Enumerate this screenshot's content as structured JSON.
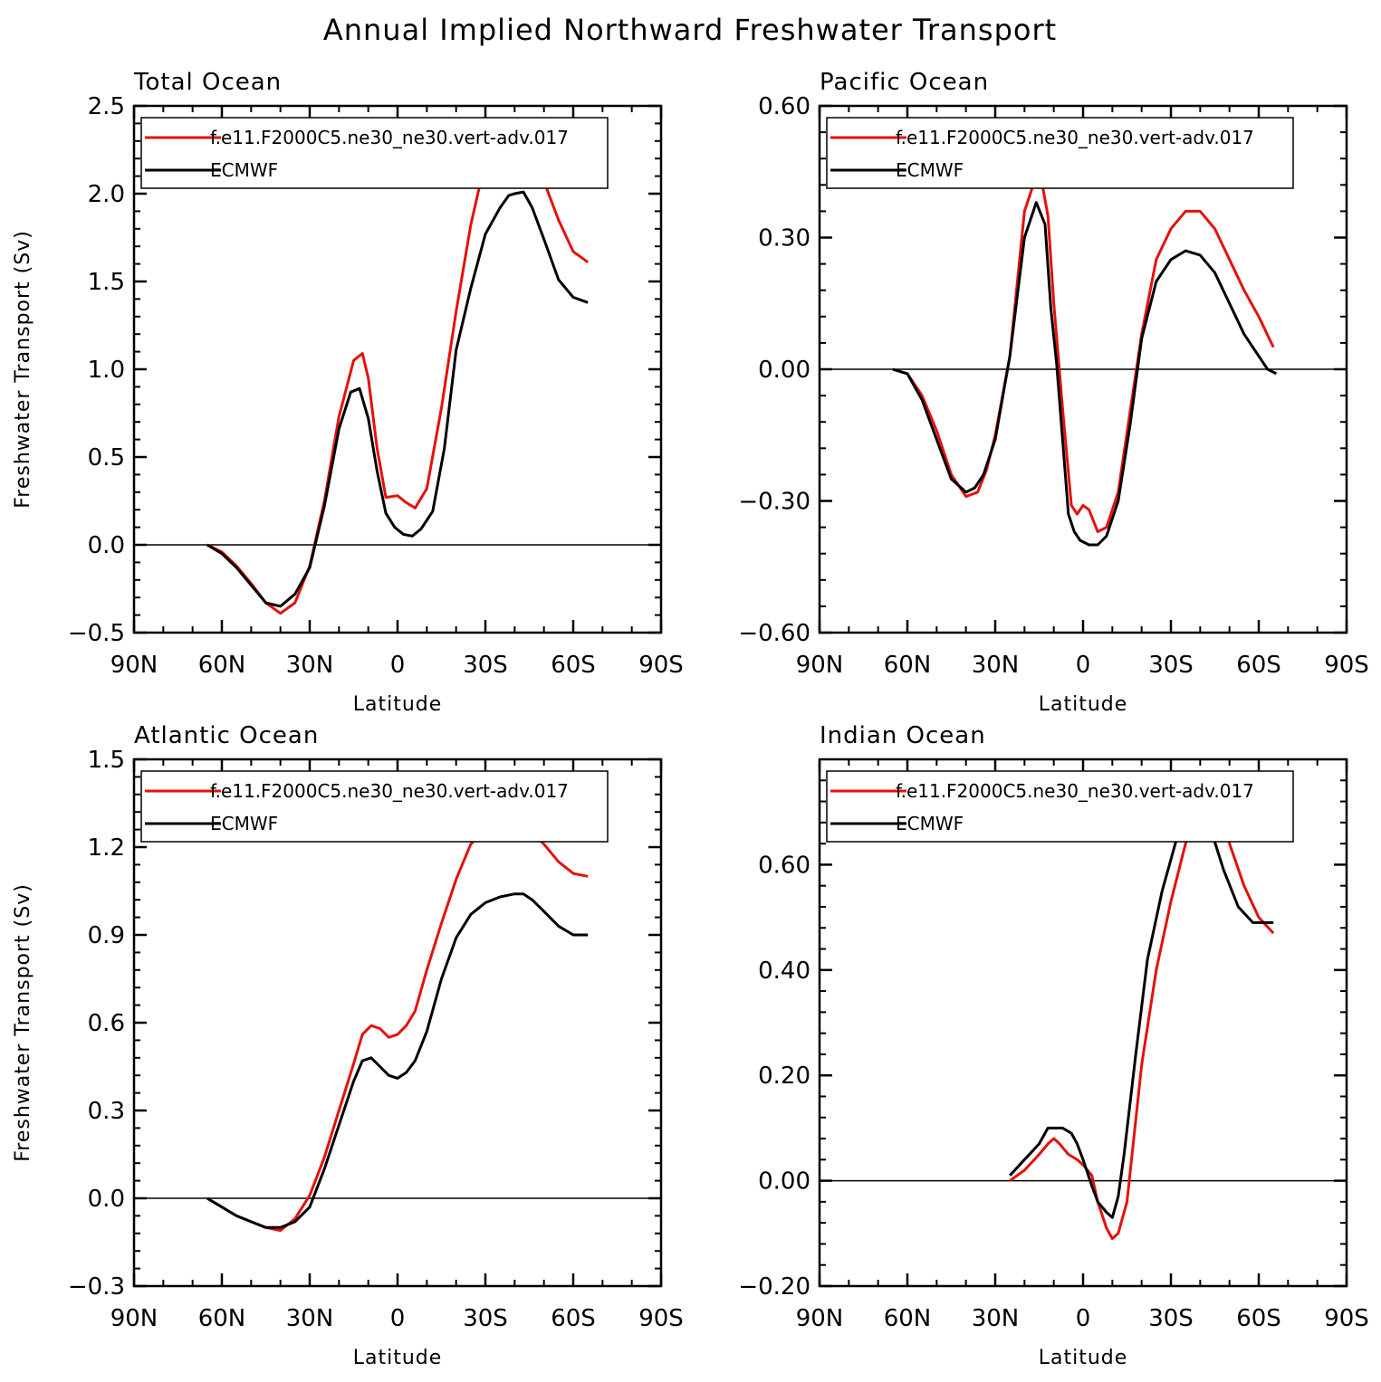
{
  "figure": {
    "title": "Annual Implied Northward Freshwater Transport"
  },
  "colors": {
    "model": "#e3120b",
    "obs": "#000000",
    "zero_line": "#000000"
  },
  "chart_data": [
    {
      "type": "line",
      "title": "Total Ocean",
      "xlabel": "Latitude",
      "ylabel": "Freshwater Transport (Sv)",
      "x_ticks": [
        -90,
        -60,
        -30,
        0,
        30,
        60,
        90
      ],
      "x_tick_labels": [
        "90N",
        "60N",
        "30N",
        "0",
        "30S",
        "60S",
        "90S"
      ],
      "xlim": [
        -90,
        90
      ],
      "ylim": [
        -0.5,
        2.5
      ],
      "y_ticks": [
        -0.5,
        0.0,
        0.5,
        1.0,
        1.5,
        2.0,
        2.5
      ],
      "y_tick_labels": [
        "-0.5",
        "0.0",
        "0.5",
        "1.0",
        "1.5",
        "2.0",
        "2.5"
      ],
      "legend": "top-left",
      "series": [
        {
          "name": "f.e11.F2000C5.ne30_ne30.vert-adv.017",
          "color": "#e3120b",
          "x": [
            -65,
            -60,
            -55,
            -50,
            -45,
            -40,
            -35,
            -30,
            -25,
            -20,
            -15,
            -12,
            -10,
            -7,
            -4,
            0,
            3,
            6,
            10,
            15,
            20,
            25,
            30,
            35,
            40,
            43,
            47,
            50,
            55,
            60,
            65
          ],
          "y": [
            0.0,
            -0.04,
            -0.12,
            -0.22,
            -0.33,
            -0.39,
            -0.33,
            -0.12,
            0.25,
            0.73,
            1.05,
            1.09,
            0.95,
            0.55,
            0.27,
            0.28,
            0.24,
            0.21,
            0.32,
            0.78,
            1.33,
            1.82,
            2.19,
            2.4,
            2.42,
            2.37,
            2.2,
            2.07,
            1.85,
            1.67,
            1.61
          ]
        },
        {
          "name": "ECMWF",
          "color": "#000000",
          "x": [
            -65,
            -60,
            -55,
            -50,
            -45,
            -40,
            -35,
            -30,
            -25,
            -20,
            -16,
            -13,
            -10,
            -7,
            -4,
            -1,
            2,
            5,
            8,
            12,
            16,
            20,
            25,
            30,
            35,
            38,
            40,
            43,
            46,
            50,
            55,
            60,
            65
          ],
          "y": [
            0.0,
            -0.05,
            -0.13,
            -0.23,
            -0.33,
            -0.35,
            -0.28,
            -0.13,
            0.22,
            0.66,
            0.87,
            0.89,
            0.72,
            0.42,
            0.18,
            0.1,
            0.06,
            0.05,
            0.09,
            0.19,
            0.55,
            1.11,
            1.46,
            1.77,
            1.92,
            1.99,
            2.0,
            2.01,
            1.92,
            1.74,
            1.51,
            1.41,
            1.38
          ]
        }
      ]
    },
    {
      "type": "line",
      "title": "Pacific Ocean",
      "xlabel": "Latitude",
      "ylabel": "",
      "x_ticks": [
        -90,
        -60,
        -30,
        0,
        30,
        60,
        90
      ],
      "x_tick_labels": [
        "90N",
        "60N",
        "30N",
        "0",
        "30S",
        "60S",
        "90S"
      ],
      "xlim": [
        -90,
        90
      ],
      "ylim": [
        -0.6,
        0.6
      ],
      "y_ticks": [
        -0.6,
        -0.3,
        0.0,
        0.3,
        0.6
      ],
      "y_tick_labels": [
        "-0.60",
        "-0.30",
        "0.00",
        "0.30",
        "0.60"
      ],
      "legend": "top-left",
      "series": [
        {
          "name": "f.e11.F2000C5.ne30_ne30.vert-adv.017",
          "color": "#e3120b",
          "x": [
            -65,
            -60,
            -55,
            -50,
            -45,
            -40,
            -36,
            -33,
            -30,
            -25,
            -20,
            -15,
            -12,
            -10,
            -7,
            -4,
            -2,
            0,
            2,
            5,
            8,
            12,
            16,
            20,
            25,
            30,
            35,
            40,
            45,
            50,
            55,
            60,
            65
          ],
          "y": [
            0.0,
            -0.01,
            -0.06,
            -0.14,
            -0.24,
            -0.29,
            -0.28,
            -0.23,
            -0.15,
            0.03,
            0.36,
            0.46,
            0.35,
            0.15,
            -0.09,
            -0.31,
            -0.33,
            -0.31,
            -0.32,
            -0.37,
            -0.36,
            -0.28,
            -0.1,
            0.08,
            0.25,
            0.32,
            0.36,
            0.36,
            0.32,
            0.25,
            0.18,
            0.12,
            0.05
          ]
        },
        {
          "name": "ECMWF",
          "color": "#000000",
          "x": [
            -65,
            -60,
            -55,
            -50,
            -45,
            -40,
            -37,
            -34,
            -30,
            -25,
            -20,
            -16,
            -13,
            -11,
            -9,
            -7,
            -5,
            -3,
            -1,
            2,
            5,
            8,
            12,
            16,
            20,
            25,
            30,
            35,
            40,
            45,
            50,
            55,
            60,
            63,
            66
          ],
          "y": [
            0.0,
            -0.01,
            -0.07,
            -0.16,
            -0.25,
            -0.28,
            -0.27,
            -0.24,
            -0.16,
            0.03,
            0.3,
            0.38,
            0.33,
            0.14,
            0.01,
            -0.16,
            -0.33,
            -0.37,
            -0.39,
            -0.4,
            -0.4,
            -0.38,
            -0.3,
            -0.13,
            0.07,
            0.2,
            0.25,
            0.27,
            0.26,
            0.22,
            0.15,
            0.08,
            0.03,
            0.0,
            -0.01
          ]
        }
      ]
    },
    {
      "type": "line",
      "title": "Atlantic Ocean",
      "xlabel": "Latitude",
      "ylabel": "Freshwater Transport (Sv)",
      "x_ticks": [
        -90,
        -60,
        -30,
        0,
        30,
        60,
        90
      ],
      "x_tick_labels": [
        "90N",
        "60N",
        "30N",
        "0",
        "30S",
        "60S",
        "90S"
      ],
      "xlim": [
        -90,
        90
      ],
      "ylim": [
        -0.3,
        1.5
      ],
      "y_ticks": [
        -0.3,
        0.0,
        0.3,
        0.6,
        0.9,
        1.2,
        1.5
      ],
      "y_tick_labels": [
        "-0.3",
        "0.0",
        "0.3",
        "0.6",
        "0.9",
        "1.2",
        "1.5"
      ],
      "legend": "top-left",
      "series": [
        {
          "name": "f.e11.F2000C5.ne30_ne30.vert-adv.017",
          "color": "#e3120b",
          "x": [
            -65,
            -60,
            -55,
            -50,
            -45,
            -40,
            -35,
            -30,
            -25,
            -20,
            -15,
            -12,
            -9,
            -6,
            -3,
            0,
            3,
            6,
            10,
            15,
            20,
            25,
            30,
            35,
            40,
            43,
            46,
            50,
            55,
            60,
            65
          ],
          "y": [
            0.0,
            -0.03,
            -0.06,
            -0.08,
            -0.1,
            -0.11,
            -0.07,
            0.01,
            0.14,
            0.3,
            0.46,
            0.56,
            0.59,
            0.58,
            0.55,
            0.56,
            0.59,
            0.64,
            0.78,
            0.94,
            1.09,
            1.21,
            1.26,
            1.3,
            1.31,
            1.29,
            1.25,
            1.21,
            1.15,
            1.11,
            1.1
          ]
        },
        {
          "name": "ECMWF",
          "color": "#000000",
          "x": [
            -65,
            -60,
            -55,
            -50,
            -45,
            -40,
            -35,
            -30,
            -25,
            -20,
            -15,
            -12,
            -9,
            -6,
            -3,
            0,
            3,
            6,
            10,
            15,
            20,
            25,
            30,
            35,
            40,
            43,
            46,
            50,
            55,
            60,
            65
          ],
          "y": [
            0.0,
            -0.03,
            -0.06,
            -0.08,
            -0.1,
            -0.1,
            -0.08,
            -0.03,
            0.1,
            0.25,
            0.4,
            0.47,
            0.48,
            0.45,
            0.42,
            0.41,
            0.43,
            0.47,
            0.57,
            0.75,
            0.89,
            0.97,
            1.01,
            1.03,
            1.04,
            1.04,
            1.02,
            0.98,
            0.93,
            0.9,
            0.9
          ]
        }
      ]
    },
    {
      "type": "line",
      "title": "Indian Ocean",
      "xlabel": "Latitude",
      "ylabel": "",
      "x_ticks": [
        -90,
        -60,
        -30,
        0,
        30,
        60,
        90
      ],
      "x_tick_labels": [
        "90N",
        "60N",
        "30N",
        "0",
        "30S",
        "60S",
        "90S"
      ],
      "xlim": [
        -90,
        90
      ],
      "ylim": [
        -0.2,
        0.8
      ],
      "y_ticks": [
        -0.2,
        0.0,
        0.2,
        0.4,
        0.6
      ],
      "y_tick_labels": [
        "-0.20",
        "0.00",
        "0.20",
        "0.40",
        "0.60"
      ],
      "legend": "top-left",
      "series": [
        {
          "name": "f.e11.F2000C5.ne30_ne30.vert-adv.017",
          "color": "#e3120b",
          "x": [
            -25,
            -20,
            -15,
            -12,
            -10,
            -8,
            -5,
            -2,
            0,
            3,
            5,
            8,
            10,
            12,
            15,
            20,
            25,
            30,
            35,
            38,
            40,
            42,
            45,
            50,
            55,
            60,
            65
          ],
          "y": [
            0.0,
            0.02,
            0.05,
            0.07,
            0.08,
            0.07,
            0.05,
            0.04,
            0.03,
            0.01,
            -0.04,
            -0.09,
            -0.11,
            -0.1,
            -0.04,
            0.22,
            0.4,
            0.53,
            0.64,
            0.71,
            0.73,
            0.75,
            0.73,
            0.64,
            0.56,
            0.5,
            0.47
          ]
        },
        {
          "name": "ECMWF",
          "color": "#000000",
          "x": [
            -25,
            -20,
            -15,
            -12,
            -10,
            -7,
            -4,
            -2,
            0,
            3,
            5,
            8,
            10,
            12,
            14,
            18,
            22,
            27,
            32,
            36,
            39,
            41,
            44,
            48,
            53,
            58,
            62,
            65
          ],
          "y": [
            0.01,
            0.04,
            0.07,
            0.1,
            0.1,
            0.1,
            0.09,
            0.07,
            0.04,
            -0.01,
            -0.04,
            -0.06,
            -0.07,
            -0.03,
            0.05,
            0.24,
            0.42,
            0.55,
            0.65,
            0.68,
            0.7,
            0.7,
            0.66,
            0.59,
            0.52,
            0.49,
            0.49,
            0.49
          ]
        }
      ]
    }
  ]
}
